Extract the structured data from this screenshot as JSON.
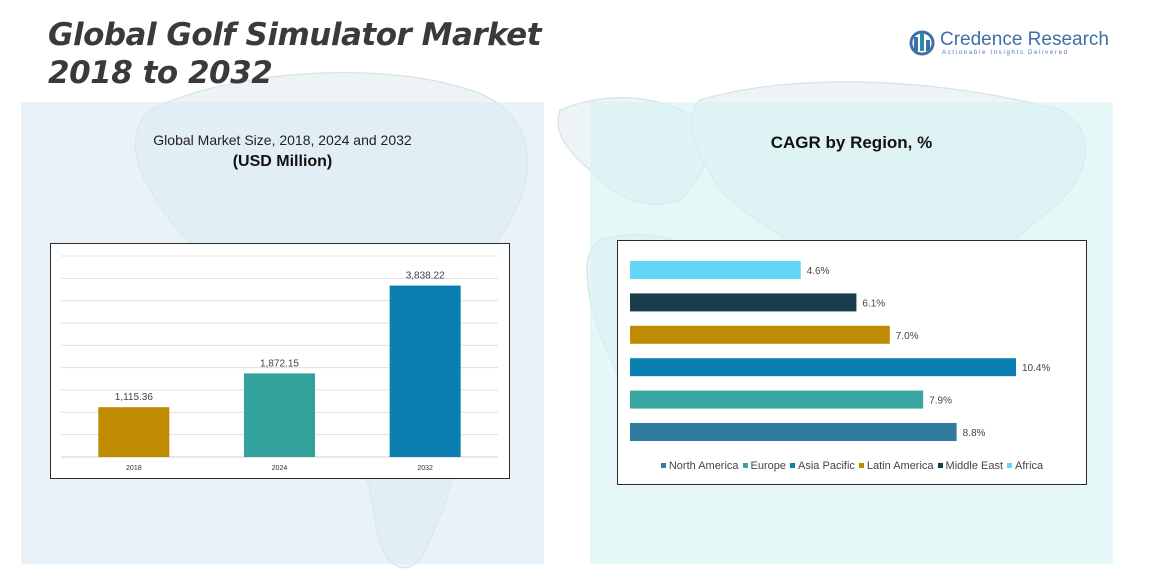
{
  "title": {
    "line1": "Global Golf Simulator Market",
    "line2": "2018 to 2032"
  },
  "logo": {
    "name": "Credence Research",
    "tagline": "Actionable Insights Delivered"
  },
  "left_panel": {
    "title": "Global Market Size, 2018, 2024 and 2032",
    "subtitle": "(USD Million)"
  },
  "right_panel": {
    "title": "CAGR by Region, %"
  },
  "chart_data": [
    {
      "type": "bar",
      "title": "Global Market Size, 2018, 2024 and 2032",
      "subtitle": "(USD Million)",
      "categories": [
        "2018",
        "2024",
        "2032"
      ],
      "values": [
        1115.36,
        1872.15,
        3838.22
      ],
      "value_labels": [
        "1,115.36",
        "1,872.15",
        "3,838.22"
      ],
      "colors": [
        "#bf8b00",
        "#33a19c",
        "#0a7fb0"
      ],
      "ylim": [
        0,
        4500
      ],
      "grid": true,
      "xlabel": "",
      "ylabel": ""
    },
    {
      "type": "bar",
      "orientation": "horizontal",
      "title": "CAGR by Region, %",
      "categories": [
        "North America",
        "Europe",
        "Asia Pacific",
        "Latin America",
        "Middle East",
        "Africa"
      ],
      "values": [
        8.8,
        7.9,
        10.4,
        7.0,
        6.1,
        4.6
      ],
      "value_labels": [
        "8.8%",
        "7.9%",
        "10.4%",
        "7.0%",
        "6.1%",
        "4.6%"
      ],
      "colors": [
        "#2f7c9c",
        "#37a6a0",
        "#0a7fb0",
        "#bf8b00",
        "#183c4c",
        "#63d6f8"
      ],
      "xlim": [
        0,
        10.4
      ],
      "legend_position": "bottom",
      "grid": false
    }
  ]
}
